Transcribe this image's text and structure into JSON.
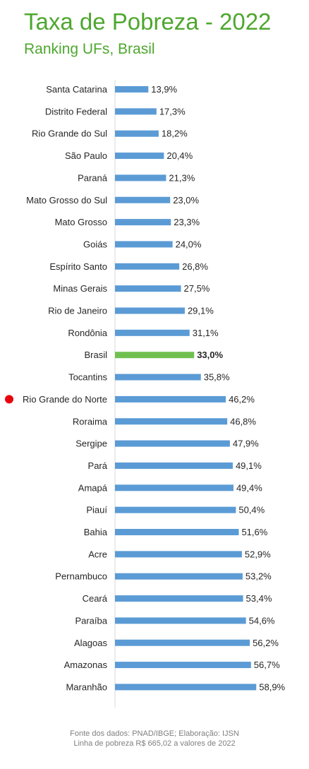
{
  "header": {
    "title": "Taxa de Pobreza - 2022",
    "subtitle": "Ranking UFs, Brasil"
  },
  "footnote": {
    "line1": "Fonte dos dados: PNAD/IBGE; Elaboração: IJSN",
    "line2": "Linha de pobreza R$ 665,02 a valores de 2022"
  },
  "colors": {
    "title": "#4ea72e",
    "bar": "#5b9bd5",
    "highlight_bar": "#70c050",
    "marker": "#e8000c",
    "label": "#262626",
    "footnote": "#7f7f7f"
  },
  "chart_data": {
    "type": "bar",
    "orientation": "horizontal",
    "title": "Taxa de Pobreza - 2022",
    "subtitle": "Ranking UFs, Brasil",
    "xlim": [
      0,
      100
    ],
    "grid": false,
    "categories": [
      "Santa Catarina",
      "Distrito Federal",
      "Rio Grande do Sul",
      "São Paulo",
      "Paraná",
      "Mato Grosso do Sul",
      "Mato Grosso",
      "Goiás",
      "Espírito Santo",
      "Minas Gerais",
      "Rio de Janeiro",
      "Rondônia",
      "Brasil",
      "Tocantins",
      "Rio Grande do Norte",
      "Roraima",
      "Sergipe",
      "Pará",
      "Amapá",
      "Piauí",
      "Bahia",
      "Acre",
      "Pernambuco",
      "Ceará",
      "Paraíba",
      "Alagoas",
      "Amazonas",
      "Maranhão"
    ],
    "values": [
      13.9,
      17.3,
      18.2,
      20.4,
      21.3,
      23.0,
      23.3,
      24.0,
      26.8,
      27.5,
      29.1,
      31.1,
      33.0,
      35.8,
      46.2,
      46.8,
      47.9,
      49.1,
      49.4,
      50.4,
      51.6,
      52.9,
      53.2,
      53.4,
      54.6,
      56.2,
      56.7,
      58.9
    ],
    "data_labels": [
      "13,9%",
      "17,3%",
      "18,2%",
      "20,4%",
      "21,3%",
      "23,0%",
      "23,3%",
      "24,0%",
      "26,8%",
      "27,5%",
      "29,1%",
      "31,1%",
      "33,0%",
      "35,8%",
      "46,2%",
      "46,8%",
      "47,9%",
      "49,1%",
      "49,4%",
      "50,4%",
      "51,6%",
      "52,9%",
      "53,2%",
      "53,4%",
      "54,6%",
      "56,2%",
      "56,7%",
      "58,9%"
    ],
    "highlight": "Brasil",
    "marked": "Rio Grande do Norte"
  }
}
